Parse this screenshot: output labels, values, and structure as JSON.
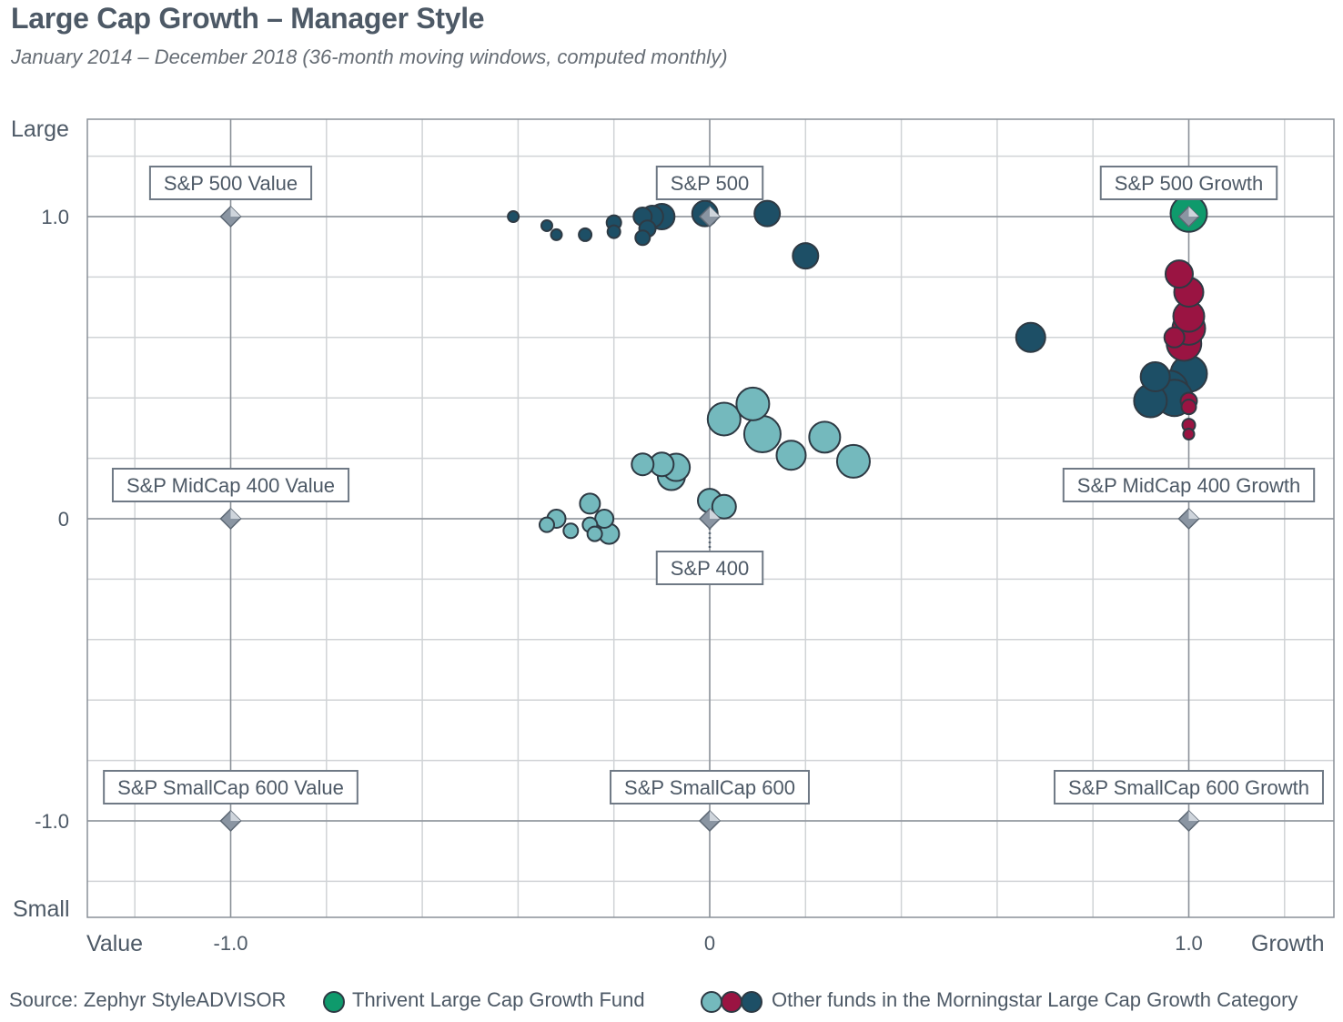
{
  "title": "Large Cap Growth – Manager Style",
  "subtitle": "January 2014 – December 2018 (36-month moving windows, computed monthly)",
  "colors": {
    "thrivent": "#0f9a6c",
    "teal_light": "#74b9bd",
    "crimson": "#9a1442",
    "navy": "#1d4f66",
    "grid": "#d0d3d6",
    "axis": "#8a9098",
    "text": "#4d5966"
  },
  "axes": {
    "y_top_label": "Large",
    "y_bottom_label": "Small",
    "x_left_label": "Value",
    "x_right_label": "Growth"
  },
  "legend": {
    "source": "Source: Zephyr StyleADVISOR",
    "fund_label": "Thrivent Large Cap Growth Fund",
    "others_label": "Other funds in the Morningstar Large Cap Growth Category"
  },
  "chart_data": {
    "type": "scatter",
    "title": "Large Cap Growth – Manager Style",
    "xlim": [
      -1.2,
      1.2
    ],
    "ylim": [
      -1.3,
      1.3
    ],
    "x_ticks": [
      {
        "value": -1.0,
        "label": "-1.0"
      },
      {
        "value": 0,
        "label": "0"
      },
      {
        "value": 1.0,
        "label": "1.0"
      }
    ],
    "y_ticks": [
      {
        "value": 1.0,
        "label": "1.0"
      },
      {
        "value": 0,
        "label": "0"
      },
      {
        "value": -1.0,
        "label": "-1.0"
      }
    ],
    "grid": true,
    "benchmarks": [
      {
        "name": "S&P 500 Value",
        "x": -1.0,
        "y": 1.0,
        "label_pos": "above"
      },
      {
        "name": "S&P 500",
        "x": 0,
        "y": 1.0,
        "label_pos": "above"
      },
      {
        "name": "S&P 500 Growth",
        "x": 1.0,
        "y": 1.0,
        "label_pos": "above"
      },
      {
        "name": "S&P MidCap 400 Value",
        "x": -1.0,
        "y": 0,
        "label_pos": "above"
      },
      {
        "name": "S&P 400",
        "x": 0,
        "y": 0,
        "label_pos": "below"
      },
      {
        "name": "S&P MidCap 400 Growth",
        "x": 1.0,
        "y": 0,
        "label_pos": "above"
      },
      {
        "name": "S&P SmallCap 600 Value",
        "x": -1.0,
        "y": -1.0,
        "label_pos": "above"
      },
      {
        "name": "S&P SmallCap 600",
        "x": 0,
        "y": -1.0,
        "label_pos": "above"
      },
      {
        "name": "S&P SmallCap 600 Growth",
        "x": 1.0,
        "y": -1.0,
        "label_pos": "above"
      }
    ],
    "series": [
      {
        "name": "Thrivent Large Cap Growth Fund",
        "color": "#0f9a6c",
        "points": [
          {
            "x": 1.0,
            "y": 1.01,
            "size": 20
          }
        ]
      },
      {
        "name": "Other funds in the Morningstar Large Cap Growth Category",
        "points": [
          {
            "x": -0.41,
            "y": 1.0,
            "size": 6,
            "color": "#1d4f66"
          },
          {
            "x": -0.34,
            "y": 0.97,
            "size": 6,
            "color": "#1d4f66"
          },
          {
            "x": -0.32,
            "y": 0.94,
            "size": 6,
            "color": "#1d4f66"
          },
          {
            "x": -0.26,
            "y": 0.94,
            "size": 7,
            "color": "#1d4f66"
          },
          {
            "x": -0.2,
            "y": 0.95,
            "size": 7,
            "color": "#1d4f66"
          },
          {
            "x": -0.2,
            "y": 0.98,
            "size": 8,
            "color": "#1d4f66"
          },
          {
            "x": -0.14,
            "y": 0.93,
            "size": 8,
            "color": "#1d4f66"
          },
          {
            "x": -0.13,
            "y": 0.96,
            "size": 9,
            "color": "#1d4f66"
          },
          {
            "x": -0.14,
            "y": 1.0,
            "size": 10,
            "color": "#1d4f66"
          },
          {
            "x": -0.12,
            "y": 1.0,
            "size": 12,
            "color": "#1d4f66"
          },
          {
            "x": -0.1,
            "y": 1.0,
            "size": 14,
            "color": "#1d4f66"
          },
          {
            "x": -0.01,
            "y": 1.01,
            "size": 14,
            "color": "#1d4f66"
          },
          {
            "x": 0.12,
            "y": 1.01,
            "size": 14,
            "color": "#1d4f66"
          },
          {
            "x": 0.2,
            "y": 0.87,
            "size": 14,
            "color": "#1d4f66"
          },
          {
            "x": 0.67,
            "y": 0.6,
            "size": 16,
            "color": "#1d4f66"
          },
          {
            "x": 0.98,
            "y": 0.81,
            "size": 15,
            "color": "#9a1442"
          },
          {
            "x": 1.0,
            "y": 0.75,
            "size": 16,
            "color": "#9a1442"
          },
          {
            "x": 1.0,
            "y": 0.67,
            "size": 17,
            "color": "#9a1442"
          },
          {
            "x": 1.0,
            "y": 0.63,
            "size": 18,
            "color": "#9a1442"
          },
          {
            "x": 0.97,
            "y": 0.6,
            "size": 11,
            "color": "#9a1442"
          },
          {
            "x": 0.99,
            "y": 0.58,
            "size": 19,
            "color": "#9a1442"
          },
          {
            "x": 0.93,
            "y": 0.47,
            "size": 16,
            "color": "#1d4f66"
          },
          {
            "x": 1.0,
            "y": 0.48,
            "size": 20,
            "color": "#1d4f66"
          },
          {
            "x": 0.96,
            "y": 0.43,
            "size": 20,
            "color": "#1d4f66"
          },
          {
            "x": 0.97,
            "y": 0.4,
            "size": 20,
            "color": "#1d4f66"
          },
          {
            "x": 0.92,
            "y": 0.39,
            "size": 18,
            "color": "#1d4f66"
          },
          {
            "x": 1.0,
            "y": 0.39,
            "size": 9,
            "color": "#9a1442"
          },
          {
            "x": 1.0,
            "y": 0.37,
            "size": 8,
            "color": "#9a1442"
          },
          {
            "x": 1.0,
            "y": 0.31,
            "size": 7,
            "color": "#9a1442"
          },
          {
            "x": 1.0,
            "y": 0.28,
            "size": 6,
            "color": "#9a1442"
          },
          {
            "x": 0.03,
            "y": 0.33,
            "size": 18,
            "color": "#74b9bd"
          },
          {
            "x": 0.09,
            "y": 0.38,
            "size": 18,
            "color": "#74b9bd"
          },
          {
            "x": 0.11,
            "y": 0.28,
            "size": 20,
            "color": "#74b9bd"
          },
          {
            "x": 0.17,
            "y": 0.21,
            "size": 16,
            "color": "#74b9bd"
          },
          {
            "x": 0.24,
            "y": 0.27,
            "size": 17,
            "color": "#74b9bd"
          },
          {
            "x": 0.3,
            "y": 0.19,
            "size": 18,
            "color": "#74b9bd"
          },
          {
            "x": -0.14,
            "y": 0.18,
            "size": 12,
            "color": "#74b9bd"
          },
          {
            "x": -0.1,
            "y": 0.18,
            "size": 13,
            "color": "#74b9bd"
          },
          {
            "x": -0.08,
            "y": 0.14,
            "size": 15,
            "color": "#74b9bd"
          },
          {
            "x": -0.07,
            "y": 0.17,
            "size": 15,
            "color": "#74b9bd"
          },
          {
            "x": 0,
            "y": 0.06,
            "size": 13,
            "color": "#74b9bd"
          },
          {
            "x": 0.03,
            "y": 0.04,
            "size": 13,
            "color": "#74b9bd"
          },
          {
            "x": -0.25,
            "y": 0.05,
            "size": 11,
            "color": "#74b9bd"
          },
          {
            "x": -0.22,
            "y": 0.0,
            "size": 10,
            "color": "#74b9bd"
          },
          {
            "x": -0.32,
            "y": 0.0,
            "size": 10,
            "color": "#74b9bd"
          },
          {
            "x": -0.34,
            "y": -0.02,
            "size": 8,
            "color": "#74b9bd"
          },
          {
            "x": -0.29,
            "y": -0.04,
            "size": 8,
            "color": "#74b9bd"
          },
          {
            "x": -0.25,
            "y": -0.02,
            "size": 8,
            "color": "#74b9bd"
          },
          {
            "x": -0.24,
            "y": -0.05,
            "size": 8,
            "color": "#74b9bd"
          },
          {
            "x": -0.21,
            "y": -0.05,
            "size": 11,
            "color": "#74b9bd"
          }
        ]
      }
    ]
  }
}
